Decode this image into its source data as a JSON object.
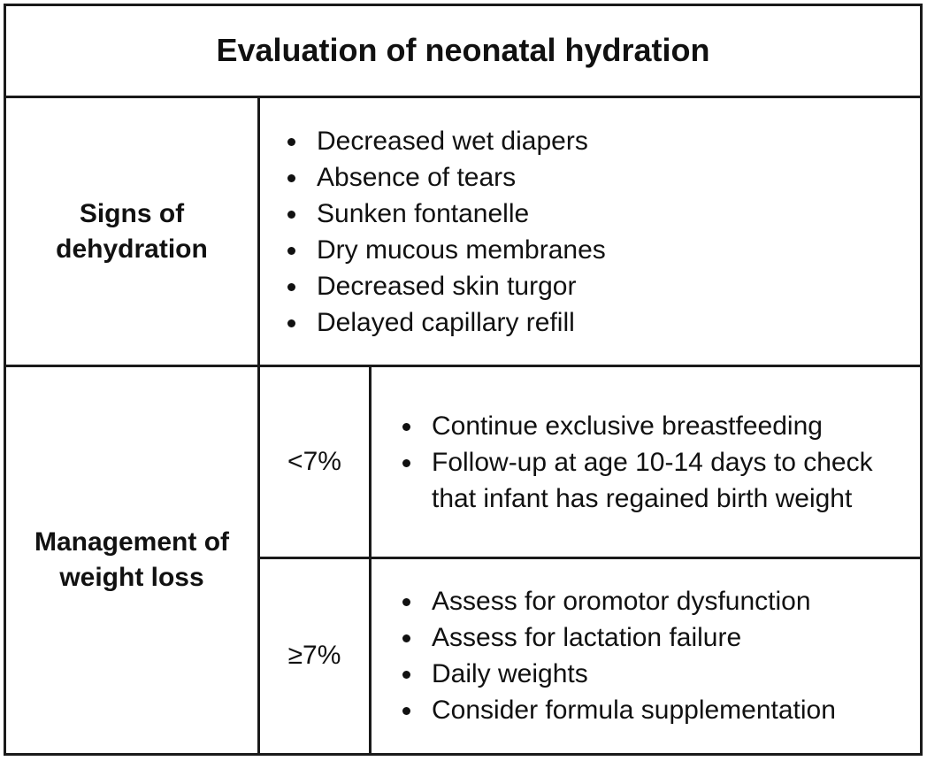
{
  "title": "Evaluation of neonatal hydration",
  "signs": {
    "heading": "Signs of dehydration",
    "items": [
      "Decreased wet diapers",
      "Absence of tears",
      "Sunken fontanelle",
      "Dry mucous membranes",
      "Decreased skin turgor",
      "Delayed capillary refill"
    ]
  },
  "management": {
    "heading": "Management of weight loss",
    "rows": [
      {
        "threshold": "<7%",
        "items": [
          "Continue exclusive breastfeeding",
          "Follow-up at age 10-14 days to check that infant has regained birth weight"
        ]
      },
      {
        "threshold": "≥7%",
        "items": [
          "Assess for oromotor dysfunction",
          "Assess for lactation failure",
          "Daily weights",
          "Consider formula supplementation"
        ]
      }
    ]
  }
}
